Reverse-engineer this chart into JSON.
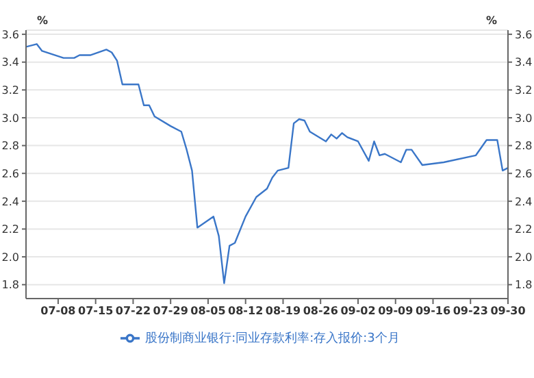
{
  "chart_data": {
    "type": "line",
    "ylabel": "%",
    "y2label": "%",
    "x": [
      "--07-02",
      "--07-04",
      "--07-05",
      "--07-09",
      "--07-11",
      "--07-12",
      "--07-14",
      "--07-17",
      "--07-18",
      "--07-19",
      "--07-20",
      "--07-23",
      "--07-24",
      "--07-25",
      "--07-26",
      "--07-29",
      "--07-31",
      "--08-01",
      "--08-02",
      "--08-03",
      "--08-06",
      "--08-07",
      "--08-08",
      "--08-09",
      "--08-10",
      "--08-12",
      "--08-14",
      "--08-16",
      "--08-17",
      "--08-18",
      "--08-20",
      "--08-21",
      "--08-22",
      "--08-23",
      "--08-24",
      "--08-27",
      "--08-28",
      "--08-29",
      "--08-30",
      "--08-31",
      "--09-02",
      "--09-04",
      "--09-05",
      "--09-06",
      "--09-07",
      "--09-10",
      "--09-11",
      "--09-12",
      "--09-14",
      "--09-18",
      "--09-24",
      "--09-26",
      "--09-28",
      "--09-29",
      "--09-30"
    ],
    "series": [
      {
        "name": "股份制商业银行:同业存款利率:存入报价:3个月",
        "color": "#3a76c8",
        "values": [
          3.51,
          3.53,
          3.48,
          3.43,
          3.43,
          3.45,
          3.45,
          3.49,
          3.47,
          3.41,
          3.24,
          3.24,
          3.09,
          3.09,
          3.01,
          2.94,
          2.9,
          2.77,
          2.62,
          2.21,
          2.29,
          2.15,
          1.81,
          2.08,
          2.1,
          2.29,
          2.43,
          2.49,
          2.57,
          2.62,
          2.64,
          2.96,
          2.99,
          2.98,
          2.9,
          2.83,
          2.88,
          2.85,
          2.89,
          2.86,
          2.83,
          2.69,
          2.83,
          2.73,
          2.74,
          2.68,
          2.77,
          2.77,
          2.66,
          2.68,
          2.73,
          2.84,
          2.84,
          2.62,
          2.64
        ]
      }
    ],
    "xlim": [
      "--07-02",
      "--09-30"
    ],
    "xticks": [
      {
        "value": "--07-08",
        "label": "07-08"
      },
      {
        "value": "--07-15",
        "label": "07-15"
      },
      {
        "value": "--07-22",
        "label": "07-22"
      },
      {
        "value": "--07-29",
        "label": "07-29"
      },
      {
        "value": "--08-05",
        "label": "08-05"
      },
      {
        "value": "--08-12",
        "label": "08-12"
      },
      {
        "value": "--08-19",
        "label": "08-19"
      },
      {
        "value": "--08-26",
        "label": "08-26"
      },
      {
        "value": "--09-02",
        "label": "09-02"
      },
      {
        "value": "--09-09",
        "label": "09-09"
      },
      {
        "value": "--09-16",
        "label": "09-16"
      },
      {
        "value": "--09-23",
        "label": "09-23"
      },
      {
        "value": "--09-30",
        "label": "09-30"
      }
    ],
    "ylim": [
      1.7,
      3.63
    ],
    "yticks": [
      1.8,
      {
        "value": 2,
        "label": "2.0"
      },
      2.2,
      2.4,
      2.6,
      2.8,
      {
        "value": 3,
        "label": "3.0"
      },
      3.2,
      3.4,
      3.6
    ],
    "y2lim": [
      1.7,
      3.63
    ],
    "y2ticks": [
      1.8,
      {
        "value": 2,
        "label": "2.0"
      },
      2.2,
      2.4,
      2.6,
      2.8,
      {
        "value": 3,
        "label": "3.0"
      },
      3.2,
      3.4,
      3.6
    ],
    "grid": "y",
    "legend": "bottom",
    "marker": "none",
    "line_style": "solid"
  }
}
